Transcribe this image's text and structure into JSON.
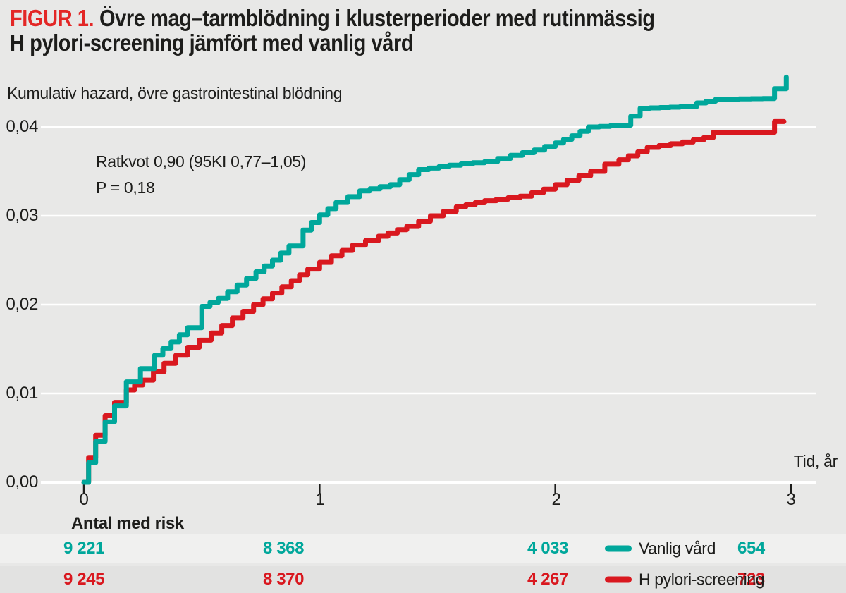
{
  "title": {
    "prefix": "FIGUR 1.",
    "line1": "Övre mag–tarmblödning i klusterperioder med rutinmässig",
    "line2": "H pylori-screening jämfört med vanlig vård"
  },
  "chart_data": {
    "type": "line",
    "subtype": "kaplan-meier-cumulative-hazard-steps",
    "title": "Kumulativ hazard, övre gastrointestinal blödning",
    "ylabel": "Kumulativ hazard, övre gastrointestinal blödning",
    "xlabel": "Tid, år",
    "xlim": [
      0,
      3
    ],
    "ylim": [
      0,
      0.044
    ],
    "x_ticks": [
      0,
      1,
      2,
      3
    ],
    "x_tick_labels": [
      "0",
      "1",
      "2",
      "3"
    ],
    "y_ticks": [
      0,
      0.01,
      0.02,
      0.03,
      0.04
    ],
    "y_tick_labels": [
      "0,00",
      "0,01",
      "0,02",
      "0,03",
      "0,04"
    ],
    "grid": "horizontal-white-lines",
    "annotation": {
      "line1": "Ratkvot 0,90 (95KI 0,77–1,05)",
      "line2": "P = 0,18"
    },
    "series": [
      {
        "name": "Vanlig vård",
        "color": "#00a79b",
        "points": [
          [
            0,
            0
          ],
          [
            0.02,
            0.0022
          ],
          [
            0.05,
            0.0046
          ],
          [
            0.09,
            0.0068
          ],
          [
            0.13,
            0.0086
          ],
          [
            0.18,
            0.0113
          ],
          [
            0.24,
            0.0128
          ],
          [
            0.3,
            0.0143
          ],
          [
            0.37,
            0.0158
          ],
          [
            0.44,
            0.0174
          ],
          [
            0.5,
            0.0198
          ],
          [
            0.57,
            0.0207
          ],
          [
            0.65,
            0.0222
          ],
          [
            0.73,
            0.0237
          ],
          [
            0.8,
            0.025
          ],
          [
            0.87,
            0.0266
          ],
          [
            0.93,
            0.0284
          ],
          [
            1.0,
            0.0301
          ],
          [
            1.07,
            0.0315
          ],
          [
            1.17,
            0.0328
          ],
          [
            1.3,
            0.0335
          ],
          [
            1.42,
            0.0352
          ],
          [
            1.55,
            0.0357
          ],
          [
            1.7,
            0.0361
          ],
          [
            1.81,
            0.0368
          ],
          [
            1.91,
            0.0374
          ],
          [
            2.0,
            0.0382
          ],
          [
            2.07,
            0.039
          ],
          [
            2.14,
            0.04
          ],
          [
            2.28,
            0.0402
          ],
          [
            2.32,
            0.0412
          ],
          [
            2.36,
            0.0421
          ],
          [
            2.57,
            0.0423
          ],
          [
            2.6,
            0.0427
          ],
          [
            2.68,
            0.0431
          ],
          [
            2.88,
            0.0432
          ],
          [
            2.93,
            0.0443
          ],
          [
            2.98,
            0.0456
          ]
        ]
      },
      {
        "name": "H pylori-screening",
        "color": "#d9181f",
        "points": [
          [
            0,
            0
          ],
          [
            0.02,
            0.0028
          ],
          [
            0.05,
            0.0053
          ],
          [
            0.09,
            0.0075
          ],
          [
            0.13,
            0.009
          ],
          [
            0.18,
            0.0104
          ],
          [
            0.25,
            0.0115
          ],
          [
            0.34,
            0.0134
          ],
          [
            0.44,
            0.0152
          ],
          [
            0.54,
            0.0168
          ],
          [
            0.63,
            0.0185
          ],
          [
            0.72,
            0.02
          ],
          [
            0.8,
            0.0213
          ],
          [
            0.88,
            0.0227
          ],
          [
            0.95,
            0.024
          ],
          [
            1.05,
            0.0255
          ],
          [
            1.14,
            0.0267
          ],
          [
            1.25,
            0.0277
          ],
          [
            1.37,
            0.0288
          ],
          [
            1.47,
            0.03
          ],
          [
            1.58,
            0.031
          ],
          [
            1.7,
            0.0317
          ],
          [
            1.85,
            0.0322
          ],
          [
            1.95,
            0.033
          ],
          [
            2.05,
            0.034
          ],
          [
            2.15,
            0.035
          ],
          [
            2.21,
            0.0358
          ],
          [
            2.27,
            0.0363
          ],
          [
            2.35,
            0.0372
          ],
          [
            2.39,
            0.0377
          ],
          [
            2.54,
            0.0383
          ],
          [
            2.63,
            0.0388
          ],
          [
            2.67,
            0.0394
          ],
          [
            2.9,
            0.0394
          ],
          [
            2.93,
            0.0406
          ],
          [
            2.97,
            0.0406
          ]
        ]
      }
    ],
    "legend_position": "inside-risk-table-rows"
  },
  "risk_table": {
    "caption": "Antal med risk",
    "time_points": [
      "0",
      "1",
      "2",
      "3"
    ],
    "rows": [
      {
        "name": "Vanlig vård",
        "color": "#00a79b",
        "values": [
          "9 221",
          "8 368",
          "4 033",
          "654"
        ]
      },
      {
        "name": "H pylori-screening",
        "color": "#d9181f",
        "values": [
          "9 245",
          "8 370",
          "4 267",
          "723"
        ]
      }
    ]
  },
  "colors": {
    "background": "#e8e8e7",
    "grid_line": "#ffffff",
    "text": "#1d1d1b",
    "title_prefix": "#e32726",
    "series_teal": "#00a79b",
    "series_red": "#d9181f",
    "risk_row1_bg": "#f0f0ef",
    "risk_row2_bg": "#e2e2e1"
  }
}
